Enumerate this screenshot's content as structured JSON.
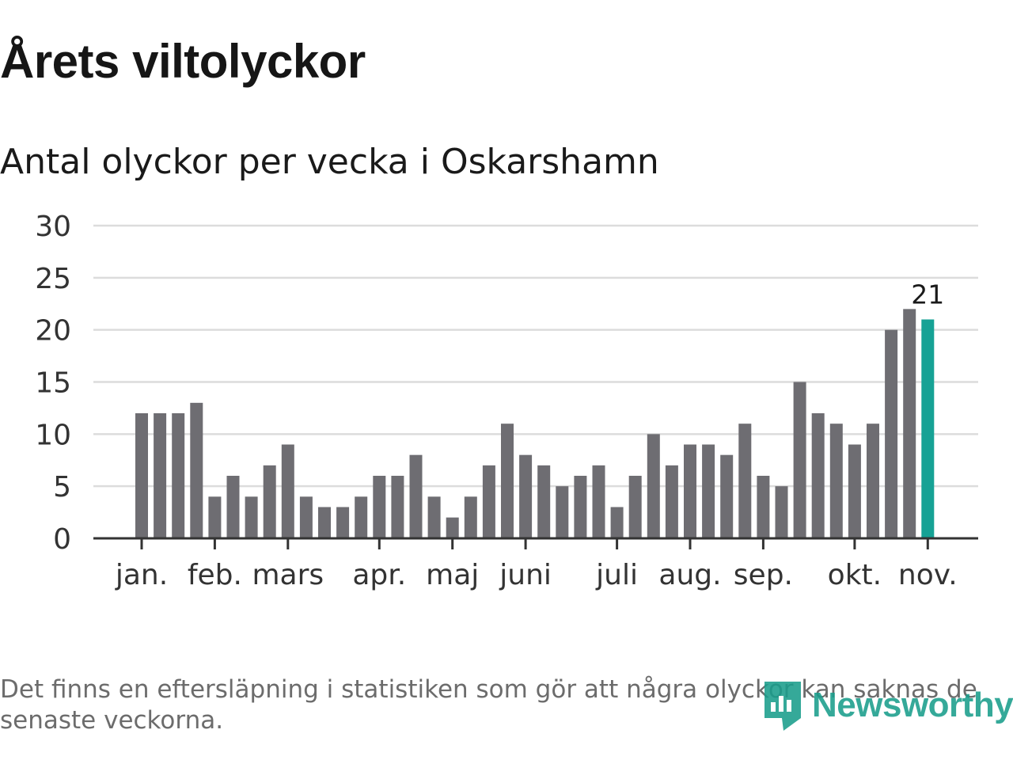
{
  "title": "Årets viltolyckor",
  "subtitle": "Antal olyckor per vecka i Oskarshamn",
  "footnote": "Det finns en eftersläpning i statistiken som gör att några olyckor kan saknas de senaste veckorna.",
  "logo_text": "Newsworthy",
  "colors": {
    "bar": "#6e6d72",
    "highlight": "#16a295",
    "grid": "#dcdcdc",
    "axis": "#333333",
    "logo": "#1a9e8c"
  },
  "chart_data": {
    "type": "bar",
    "ylim": [
      0,
      30
    ],
    "yticks": [
      "0",
      "5",
      "10",
      "15",
      "20",
      "25",
      "30"
    ],
    "grid": true,
    "month_labels": [
      {
        "label": "jan.",
        "week": 1
      },
      {
        "label": "feb.",
        "week": 5
      },
      {
        "label": "mars",
        "week": 9
      },
      {
        "label": "apr.",
        "week": 14
      },
      {
        "label": "maj",
        "week": 18
      },
      {
        "label": "juni",
        "week": 22
      },
      {
        "label": "juli",
        "week": 27
      },
      {
        "label": "aug.",
        "week": 31
      },
      {
        "label": "sep.",
        "week": 35
      },
      {
        "label": "okt.",
        "week": 40
      },
      {
        "label": "nov.",
        "week": 44
      }
    ],
    "weeks": [
      1,
      2,
      3,
      4,
      5,
      6,
      7,
      8,
      9,
      10,
      11,
      12,
      13,
      14,
      15,
      16,
      17,
      18,
      19,
      20,
      21,
      22,
      23,
      24,
      25,
      26,
      27,
      28,
      29,
      30,
      31,
      32,
      33,
      34,
      35,
      36,
      37,
      38,
      39,
      40,
      41,
      42,
      43,
      44
    ],
    "values": [
      12,
      12,
      12,
      13,
      4,
      6,
      4,
      7,
      9,
      4,
      3,
      3,
      4,
      6,
      6,
      8,
      4,
      2,
      4,
      7,
      11,
      8,
      7,
      5,
      6,
      7,
      3,
      6,
      10,
      7,
      9,
      9,
      8,
      11,
      6,
      5,
      15,
      12,
      11,
      9,
      11,
      20,
      22,
      21
    ],
    "highlight_index": 43,
    "highlight_label": "21"
  }
}
